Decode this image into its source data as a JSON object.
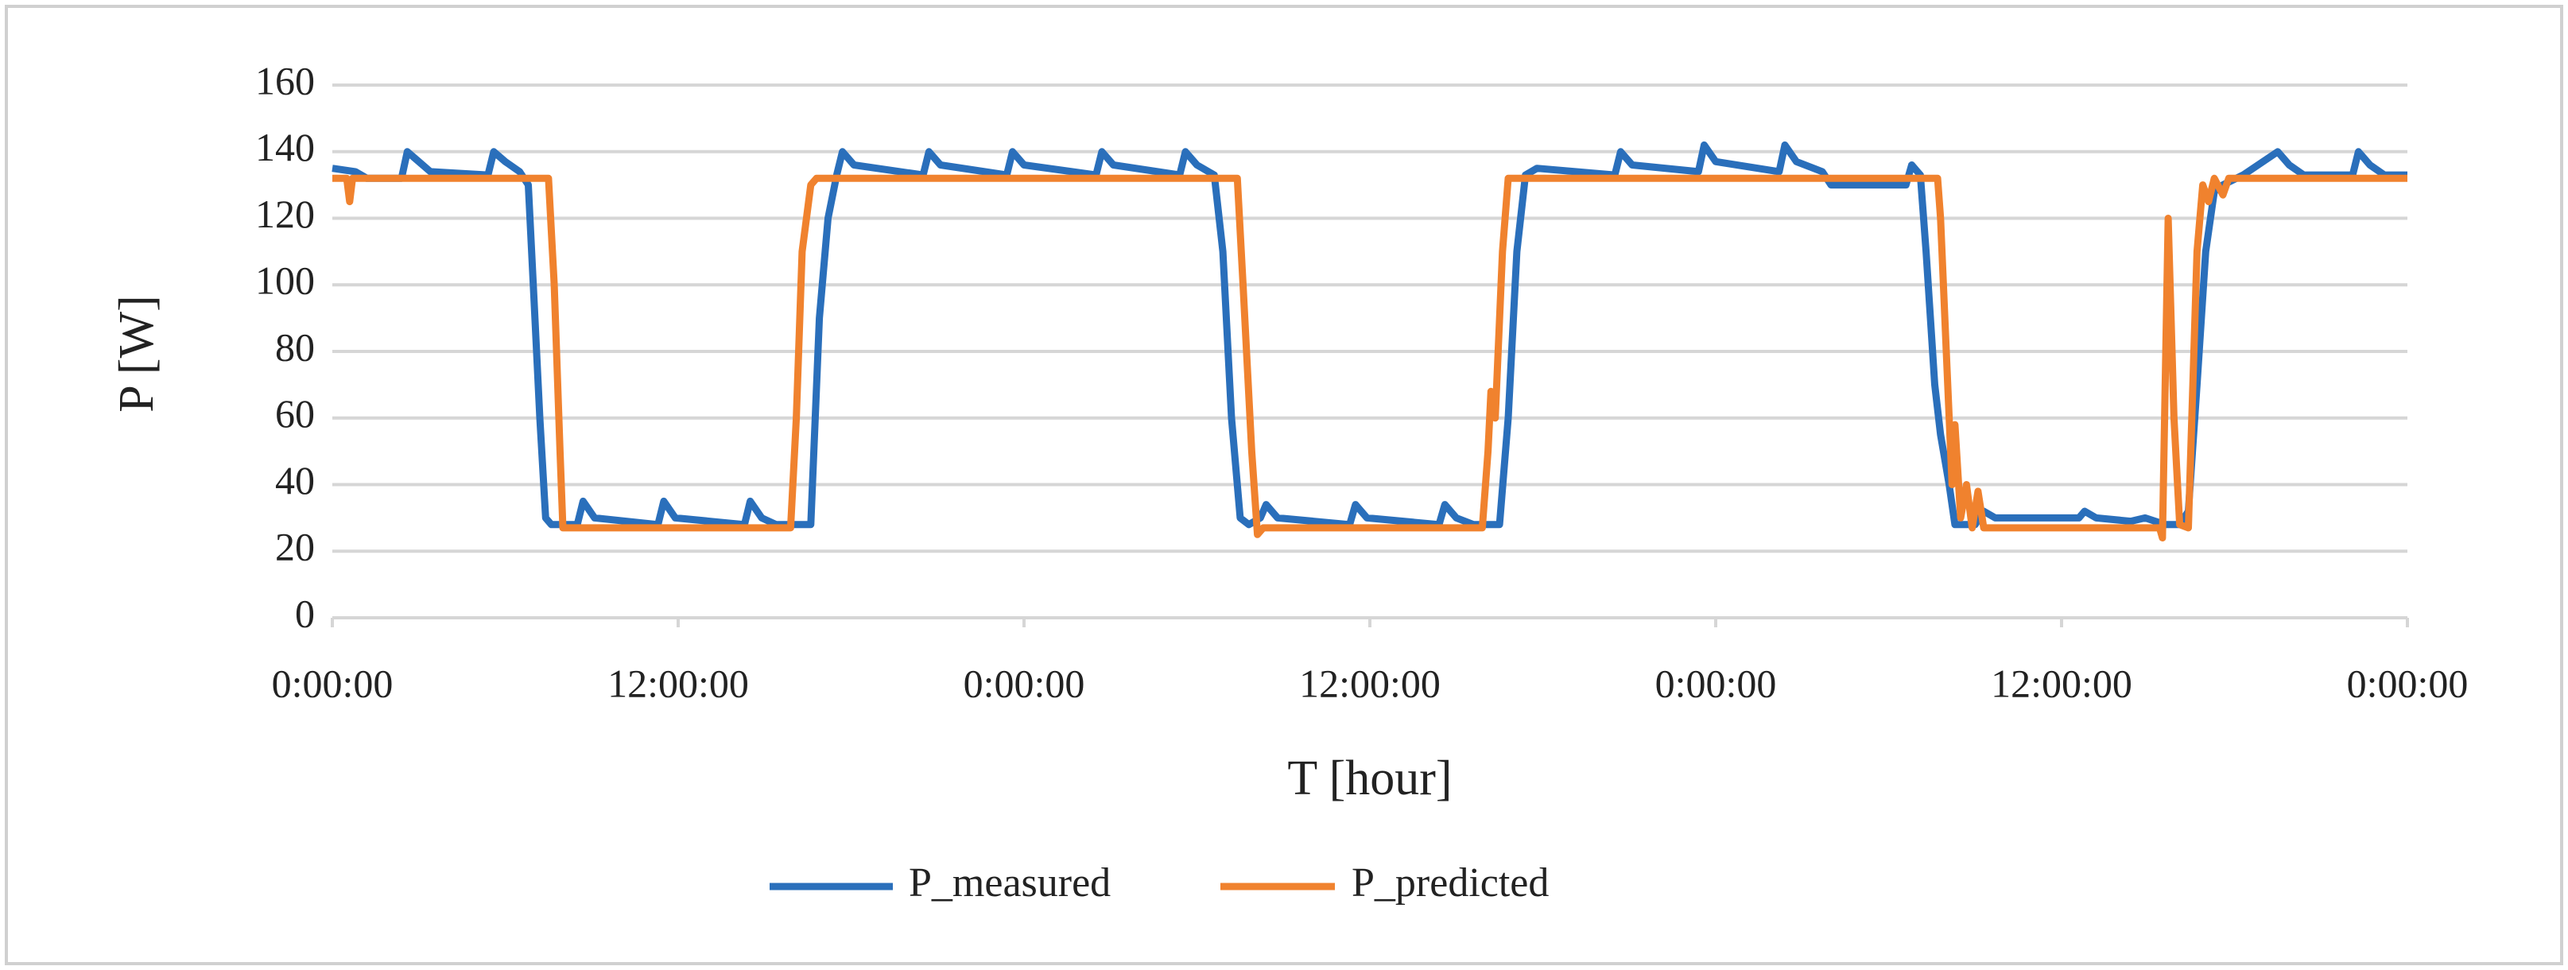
{
  "chart_data": {
    "type": "line",
    "xlabel": "T [hour]",
    "ylabel": "P [W]",
    "xlim": [
      0,
      72
    ],
    "ylim": [
      0,
      160
    ],
    "xticks": [
      {
        "value": 0,
        "label": "0:00:00"
      },
      {
        "value": 12,
        "label": "12:00:00"
      },
      {
        "value": 24,
        "label": "0:00:00"
      },
      {
        "value": 36,
        "label": "12:00:00"
      },
      {
        "value": 48,
        "label": "0:00:00"
      },
      {
        "value": 60,
        "label": "12:00:00"
      },
      {
        "value": 72,
        "label": "0:00:00"
      }
    ],
    "yticks": [
      0,
      20,
      40,
      60,
      80,
      100,
      120,
      140,
      160
    ],
    "grid": true,
    "legend": "bottom",
    "series": [
      {
        "name": "P_measured",
        "color": "#2a6fbb",
        "x": [
          0,
          0.8,
          1.2,
          2.4,
          2.6,
          3.0,
          3.4,
          5.4,
          5.6,
          6.0,
          6.5,
          6.8,
          7.0,
          7.2,
          7.4,
          7.6,
          8.5,
          8.7,
          9.1,
          11.3,
          11.5,
          11.9,
          14.3,
          14.5,
          14.9,
          15.4,
          16.6,
          16.9,
          17.2,
          17.5,
          17.7,
          18.1,
          20.5,
          20.7,
          21.1,
          23.4,
          23.6,
          24.0,
          26.5,
          26.7,
          27.1,
          29.4,
          29.6,
          30.0,
          30.6,
          30.9,
          31.2,
          31.5,
          31.8,
          32.2,
          32.4,
          32.8,
          35.3,
          35.5,
          35.9,
          38.4,
          38.6,
          39.0,
          39.6,
          40.5,
          40.8,
          41.1,
          41.4,
          41.8,
          44.5,
          44.7,
          45.1,
          47.4,
          47.6,
          48.0,
          50.2,
          50.4,
          50.8,
          51.7,
          52.0,
          54.6,
          54.8,
          55.1,
          55.3,
          55.6,
          55.8,
          56.1,
          56.3,
          57.0,
          57.3,
          57.7,
          60.6,
          60.8,
          61.2,
          62.4,
          62.9,
          63.6,
          64.1,
          64.4,
          64.7,
          65.0,
          65.3,
          65.6,
          66.3,
          67.5,
          67.9,
          68.4,
          70.1,
          70.3,
          70.7,
          71.2,
          72
        ],
        "values": [
          135,
          134,
          132,
          132,
          140,
          137,
          134,
          133,
          140,
          137,
          134,
          130,
          95,
          60,
          30,
          28,
          28,
          35,
          30,
          28,
          35,
          30,
          28,
          35,
          30,
          28,
          28,
          90,
          120,
          133,
          140,
          136,
          133,
          140,
          136,
          133,
          140,
          136,
          133,
          140,
          136,
          133,
          140,
          136,
          133,
          110,
          60,
          30,
          28,
          30,
          34,
          30,
          28,
          34,
          30,
          28,
          34,
          30,
          28,
          28,
          60,
          110,
          133,
          135,
          133,
          140,
          136,
          134,
          142,
          137,
          134,
          142,
          137,
          134,
          130,
          130,
          136,
          133,
          110,
          70,
          55,
          40,
          28,
          28,
          32,
          30,
          30,
          32,
          30,
          29,
          30,
          28,
          28,
          32,
          70,
          110,
          128,
          130,
          133,
          140,
          136,
          133,
          133,
          140,
          136,
          133,
          133
        ]
      },
      {
        "name": "P_predicted",
        "color": "#f0822e",
        "x": [
          0,
          0.5,
          0.6,
          0.7,
          7.5,
          7.7,
          7.9,
          8.0,
          15.9,
          16.1,
          16.3,
          16.6,
          16.8,
          31.4,
          31.6,
          31.9,
          32.1,
          32.3,
          39.9,
          40.1,
          40.2,
          40.35,
          40.6,
          40.8,
          55.7,
          55.8,
          56.0,
          56.2,
          56.3,
          56.5,
          56.7,
          56.9,
          57.1,
          57.3,
          63.4,
          63.5,
          63.7,
          63.9,
          64.1,
          64.4,
          64.7,
          64.9,
          65.1,
          65.3,
          65.6,
          65.8,
          72
        ],
        "values": [
          132,
          132,
          125,
          132,
          132,
          100,
          50,
          27,
          27,
          60,
          110,
          130,
          132,
          132,
          100,
          50,
          25,
          27,
          27,
          50,
          68,
          60,
          110,
          132,
          132,
          120,
          80,
          40,
          58,
          30,
          40,
          27,
          38,
          27,
          27,
          24,
          120,
          60,
          28,
          27,
          110,
          130,
          125,
          132,
          127,
          132,
          132
        ]
      }
    ]
  }
}
